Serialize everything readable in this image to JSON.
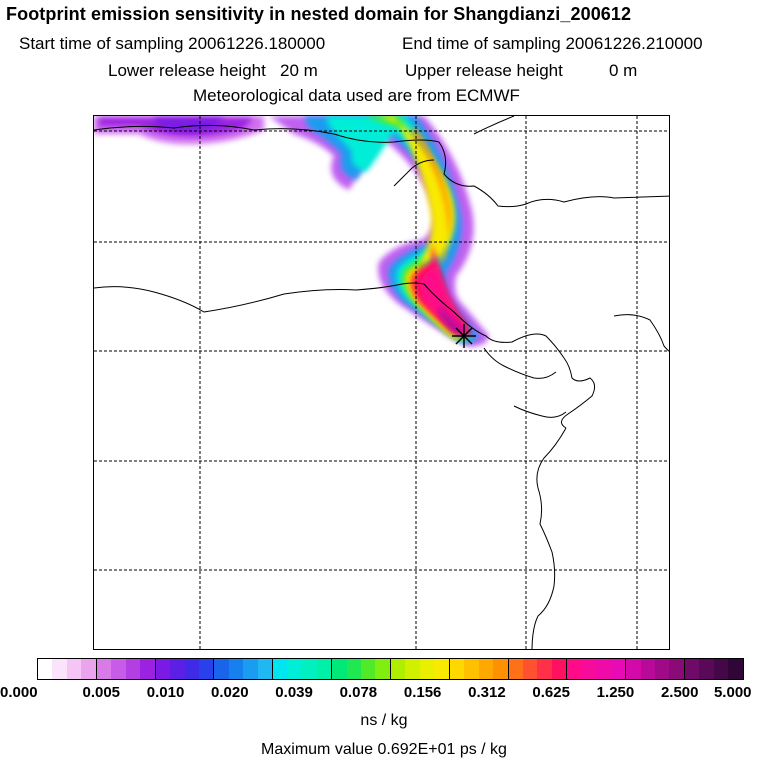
{
  "title": "Footprint emission sensitivity in nested domain for Shangdianzi_200612",
  "sampling": {
    "start_label": "Start time of sampling 20061226.180000",
    "end_label": "End time of sampling 20061226.210000"
  },
  "release": {
    "lower_label": "Lower release height",
    "lower_value": "20 m",
    "upper_label": "Upper release height",
    "upper_value": "0 m"
  },
  "met_data": "Meteorological data used are from ECMWF",
  "colorbar": {
    "tick_labels": [
      "0.000",
      "0.005",
      "0.010",
      "0.020",
      "0.039",
      "0.078",
      "0.156",
      "0.312",
      "0.625",
      "1.250",
      "2.500",
      "5.000"
    ],
    "colors": [
      "#ffffff",
      "#fbe3fb",
      "#f5c6f5",
      "#eaa4ee",
      "#d87ae8",
      "#c75ce6",
      "#b33ee2",
      "#9a22e0",
      "#7a1ae4",
      "#5d1ee6",
      "#3f2ae8",
      "#2a40ea",
      "#1a64ec",
      "#1680ee",
      "#1a9cf0",
      "#20b8f2",
      "#00e6f0",
      "#00eed8",
      "#00f0c0",
      "#00f0a8",
      "#00e878",
      "#20e850",
      "#50ea28",
      "#80ee10",
      "#b0ee00",
      "#d0f000",
      "#e8f000",
      "#f8ea00",
      "#ffd800",
      "#ffc000",
      "#ffa800",
      "#ff9000",
      "#ff7018",
      "#ff5030",
      "#ff3048",
      "#ff1060",
      "#ff0a88",
      "#f80a9a",
      "#f00aa8",
      "#e80ab4",
      "#d40aa8",
      "#b80a98",
      "#a00a88",
      "#8a0a78",
      "#700a68",
      "#580a58",
      "#440848",
      "#300638"
    ],
    "units": "ns / kg"
  },
  "max_value_label": "Maximum value  0.692E+01 ps / kg",
  "map": {
    "receptor_marker": "star-icon",
    "plume_colors": {
      "outer": "#c060f0",
      "mid_light": "#20b8f2",
      "cyan": "#00eed8",
      "green": "#50ea28",
      "yellow": "#f8ea00",
      "orange": "#ff9000",
      "red": "#ff3048",
      "magenta": "#ff0a88",
      "dark": "#b80a98"
    }
  }
}
